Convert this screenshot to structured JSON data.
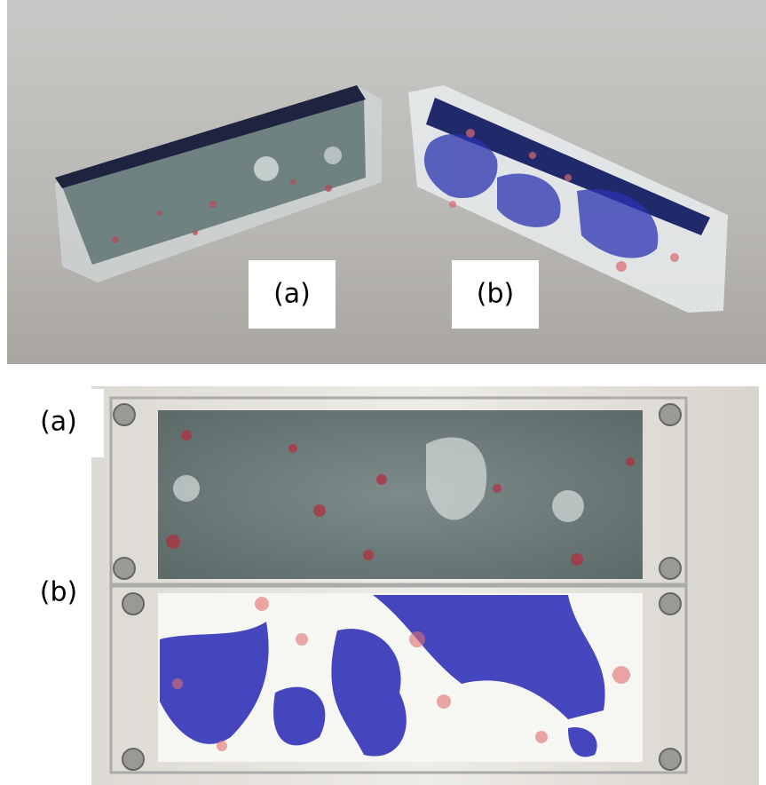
{
  "top_photo": {
    "labels": [
      "(a)",
      "(b)"
    ]
  },
  "bottom_photo": {
    "labels": [
      "(a)",
      "(b)"
    ]
  }
}
